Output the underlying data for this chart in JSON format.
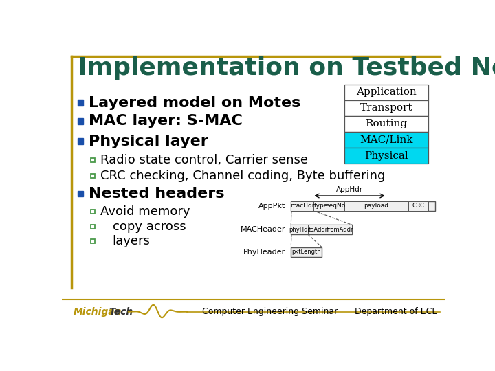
{
  "title": "Implementation on Testbed Nodes",
  "title_color": "#1a5e4a",
  "title_fontsize": 26,
  "bullet1": "Layered model on Motes",
  "bullet2": "MAC layer: S-MAC",
  "bullet3": "Physical layer",
  "sub1": "Radio state control, Carrier sense",
  "sub2": "CRC checking, Channel coding, Byte buffering",
  "bullet4": "Nested headers",
  "sub3": "Avoid memory",
  "sub4": "copy across",
  "sub5": "layers",
  "layer_labels": [
    "Application",
    "Transport",
    "Routing",
    "MAC/Link",
    "Physical"
  ],
  "layer_colors": [
    "#ffffff",
    "#ffffff",
    "#ffffff",
    "#00d8f0",
    "#00d8f0"
  ],
  "footer_center": "Computer Engineering Seminar",
  "footer_right": "Department of ECE",
  "gold_color": "#b8960c",
  "bullet_color": "#1a4faa",
  "small_bullet_color": "#4a9a4a"
}
